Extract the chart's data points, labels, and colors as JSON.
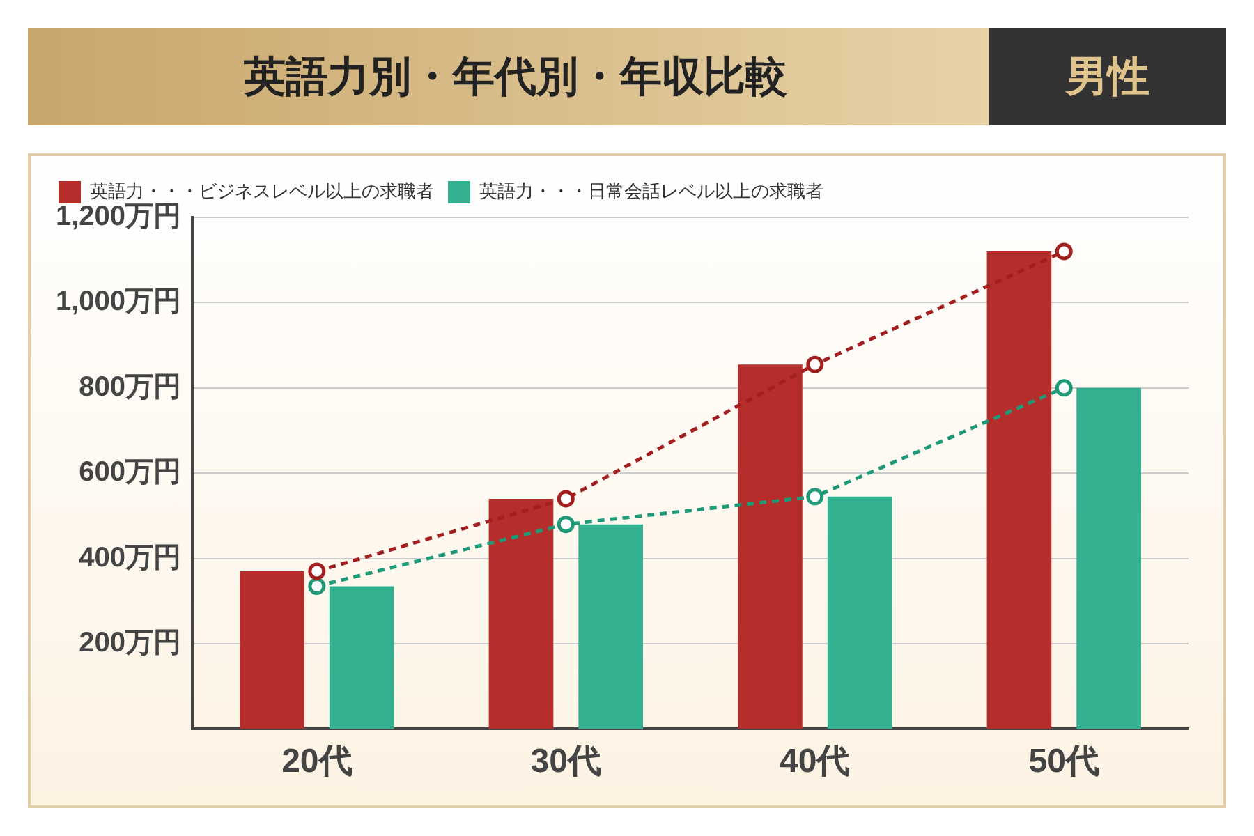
{
  "chart_data": {
    "type": "bar",
    "title": "英語力別・年代別・年収比較",
    "subtitle": "男性",
    "categories": [
      "20代",
      "30代",
      "40代",
      "50代"
    ],
    "series": [
      {
        "name": "英語力・・・ビジネスレベル以上の求職者",
        "color": "#b52e2b",
        "values": [
          370,
          540,
          855,
          1120
        ]
      },
      {
        "name": "英語力・・・日常会話レベル以上の求職者",
        "color": "#33b08f",
        "values": [
          335,
          480,
          545,
          800
        ]
      },
      {
        "type": "line",
        "color": "#a31f1f",
        "values": [
          370,
          540,
          855,
          1120
        ],
        "marker": "circle",
        "line_style": "dashed"
      },
      {
        "type": "line",
        "color": "#1e9a78",
        "values": [
          335,
          480,
          545,
          800
        ],
        "marker": "circle",
        "line_style": "dashed"
      }
    ],
    "ylim": [
      0,
      1200
    ],
    "yticks": [
      {
        "value": 200,
        "label": "200万円"
      },
      {
        "value": 400,
        "label": "400万円"
      },
      {
        "value": 600,
        "label": "600万円"
      },
      {
        "value": 800,
        "label": "800万円"
      },
      {
        "value": 1000,
        "label": "1,000万円"
      },
      {
        "value": 1200,
        "label": "1,200万円"
      }
    ],
    "grid": "y",
    "legend": "top left"
  }
}
